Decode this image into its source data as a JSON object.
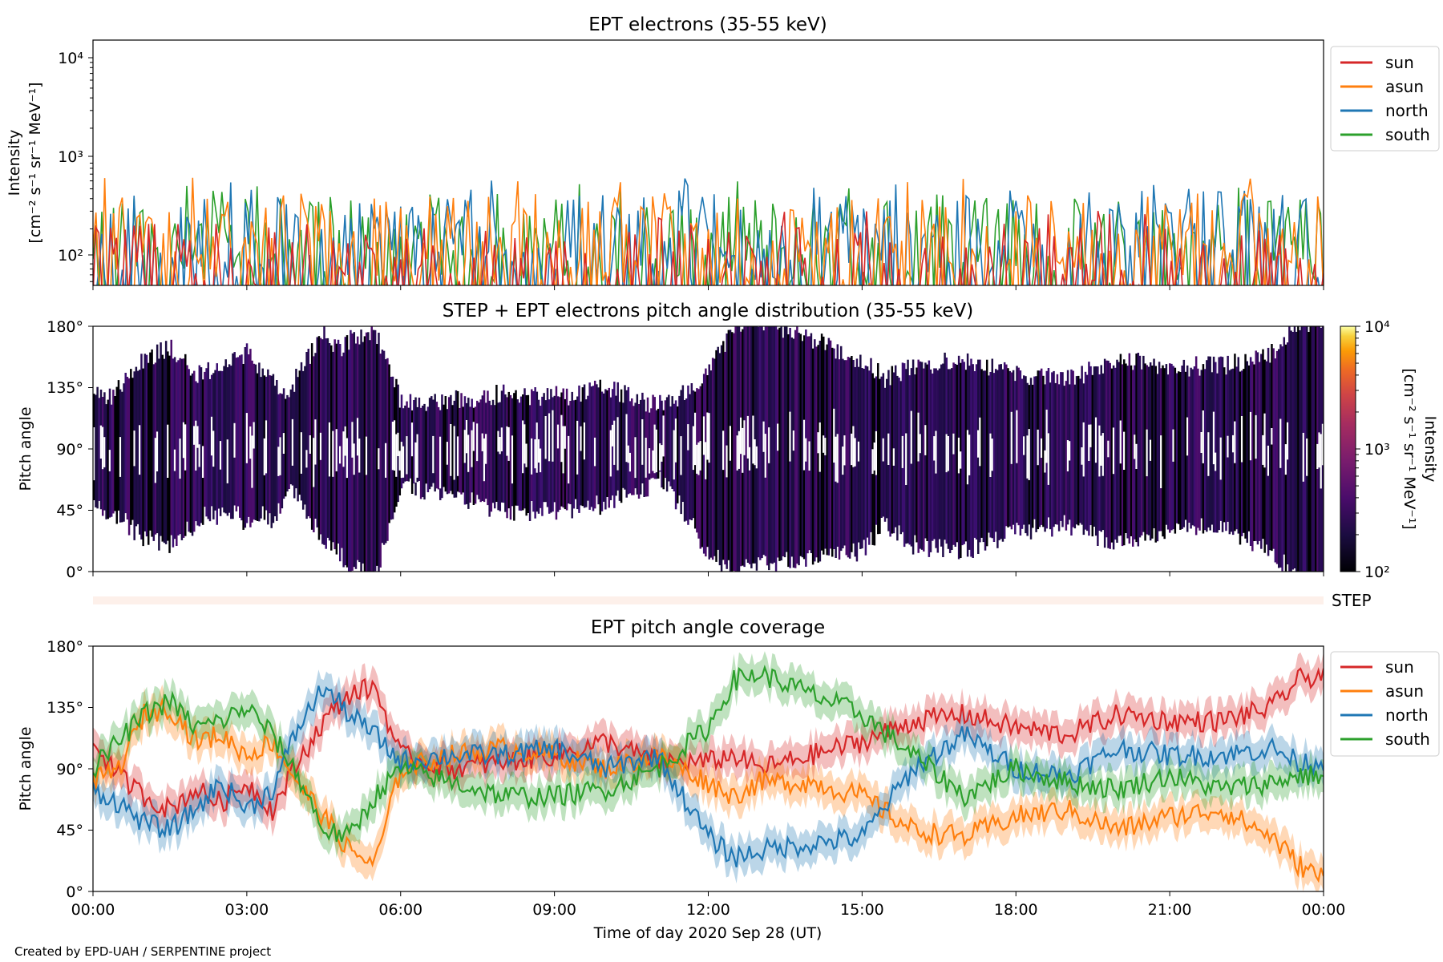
{
  "footer_credit": "Created by EPD-UAH / SERPENTINE project",
  "time_ticks": [
    "00:00",
    "03:00",
    "06:00",
    "09:00",
    "12:00",
    "15:00",
    "18:00",
    "21:00",
    "00:00"
  ],
  "xlabel": "Time of day 2020 Sep 28 (UT)",
  "colors": {
    "sun": "#d62728",
    "asun": "#ff7f0e",
    "north": "#1f77b4",
    "south": "#2ca02c"
  },
  "chart_data": [
    {
      "type": "line",
      "title": "EPT electrons (35-55 keV)",
      "ylabel_line1": "Intensity",
      "ylabel_line2": "[cm⁻² s⁻¹ sr⁻¹ MeV⁻¹]",
      "yscale": "log",
      "ylim": [
        55,
        15000
      ],
      "ytick_labels": [
        "10⁴",
        "10³",
        "10²"
      ],
      "xlim_hours": [
        0,
        24
      ],
      "legend": [
        "sun",
        "asun",
        "north",
        "south"
      ],
      "legend_position": "outside-right",
      "series": [
        {
          "name": "sun",
          "typical": 80,
          "peak": 330
        },
        {
          "name": "asun",
          "typical": 160,
          "peak": 700
        },
        {
          "name": "north",
          "typical": 170,
          "peak": 650
        },
        {
          "name": "south",
          "typical": 150,
          "peak": 600
        }
      ]
    },
    {
      "type": "heatmap",
      "title": "STEP + EPT electrons pitch angle distribution (35-55 keV)",
      "ylabel": "Pitch angle",
      "ytick_labels": [
        "180°",
        "135°",
        "90°",
        "45°",
        "0°"
      ],
      "ylim_deg": [
        0,
        180
      ],
      "colorbar_label": "Intensity",
      "colorbar_unit": "[cm⁻² s⁻¹ sr⁻¹ MeV⁻¹]",
      "colorbar_tick_labels": [
        "10⁴",
        "10³",
        "10²"
      ],
      "colorbar_range": [
        100,
        10000
      ],
      "colormap": "inferno",
      "typical_intensity": 150
    },
    {
      "type": "bar",
      "label": "STEP",
      "note": "empty strip"
    },
    {
      "type": "line",
      "title": "EPT pitch angle coverage",
      "ylabel": "Pitch angle",
      "ytick_labels": [
        "180°",
        "135°",
        "90°",
        "45°",
        "0°"
      ],
      "ylim_deg": [
        0,
        180
      ],
      "legend": [
        "sun",
        "asun",
        "north",
        "south"
      ],
      "legend_position": "outside-right",
      "band_halfwidth_deg": 12,
      "series": [
        {
          "name": "sun",
          "x_hours": [
            0,
            0.5,
            1,
            1.5,
            2,
            2.5,
            3,
            3.5,
            4,
            4.5,
            5,
            5.5,
            6,
            7,
            8,
            9,
            10,
            11,
            12,
            12.5,
            13,
            14,
            15,
            16,
            17,
            18,
            19,
            20,
            21,
            22,
            23,
            23.5,
            24
          ],
          "y_deg": [
            110,
            85,
            70,
            60,
            75,
            65,
            80,
            60,
            95,
            125,
            145,
            150,
            100,
            90,
            95,
            100,
            110,
            95,
            95,
            100,
            90,
            100,
            110,
            125,
            130,
            120,
            115,
            130,
            125,
            125,
            135,
            155,
            160
          ]
        },
        {
          "name": "asun",
          "x_hours": [
            0,
            0.5,
            1,
            1.5,
            2,
            2.5,
            3,
            3.5,
            4,
            4.5,
            5,
            5.5,
            6,
            7,
            8,
            9,
            10,
            11,
            12,
            12.5,
            13,
            14,
            15,
            16,
            17,
            18,
            19,
            20,
            21,
            22,
            23,
            23.5,
            24
          ],
          "y_deg": [
            80,
            90,
            130,
            135,
            110,
            115,
            100,
            110,
            80,
            55,
            30,
            20,
            90,
            100,
            105,
            100,
            90,
            100,
            80,
            70,
            80,
            80,
            70,
            45,
            40,
            55,
            60,
            45,
            55,
            60,
            40,
            20,
            10
          ]
        },
        {
          "name": "north",
          "x_hours": [
            0,
            0.5,
            1,
            1.5,
            2,
            2.5,
            3,
            3.5,
            4,
            4.5,
            5,
            5.5,
            6,
            7,
            8,
            9,
            10,
            11,
            12,
            12.5,
            13,
            14,
            15,
            16,
            17,
            18,
            19,
            20,
            21,
            22,
            23,
            23.5,
            24
          ],
          "y_deg": [
            75,
            65,
            50,
            45,
            60,
            80,
            60,
            75,
            120,
            150,
            130,
            115,
            95,
            100,
            100,
            105,
            90,
            100,
            40,
            25,
            30,
            35,
            40,
            90,
            115,
            90,
            85,
            105,
            100,
            100,
            105,
            95,
            95
          ]
        },
        {
          "name": "south",
          "x_hours": [
            0,
            0.5,
            1,
            1.5,
            2,
            2.5,
            3,
            3.5,
            4,
            4.5,
            5,
            5.5,
            6,
            7,
            8,
            9,
            10,
            11,
            12,
            12.5,
            13,
            14,
            15,
            16,
            17,
            18,
            19,
            20,
            21,
            22,
            23,
            23.5,
            24
          ],
          "y_deg": [
            90,
            110,
            130,
            140,
            120,
            125,
            135,
            115,
            85,
            45,
            40,
            70,
            90,
            80,
            70,
            70,
            75,
            90,
            120,
            155,
            160,
            145,
            130,
            100,
            70,
            90,
            80,
            75,
            85,
            75,
            80,
            85,
            85
          ]
        }
      ]
    }
  ]
}
